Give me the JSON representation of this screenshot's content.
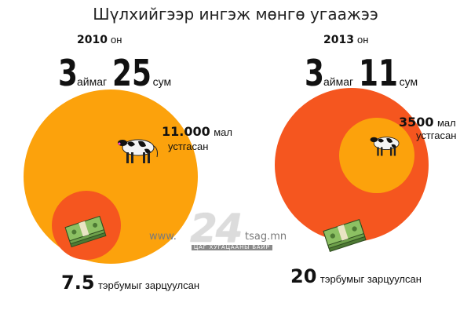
{
  "title": "Шүлхийгээр ингэж мөнгө угаажээ",
  "left": {
    "year": "2010",
    "year_suffix": "он",
    "aimag_count": "3",
    "aimag_label": "аймаг",
    "sum_count": "25",
    "sum_label": "сум",
    "livestock_number": "11.000",
    "livestock_unit": "мал",
    "livestock_text": "устгасан",
    "spend_number": "7.5",
    "spend_text": "тэрбумыг зарцуулсан"
  },
  "right": {
    "year": "2013",
    "year_suffix": "он",
    "aimag_count": "3",
    "aimag_label": "аймаг",
    "sum_count": "11",
    "sum_label": "сум",
    "livestock_number": "3500",
    "livestock_unit": "мал",
    "livestock_text": "устгасан",
    "spend_number": "20",
    "spend_text": "тэрбумыг зарцуулсан"
  },
  "watermark": {
    "left": "www.",
    "logo": "24",
    "right": "tsag.mn",
    "sub": "ЦАГ ХУГАЦААНЫ БАЙР"
  },
  "colors": {
    "orange_light": "#FCA20C",
    "orange_red": "#F5561F",
    "cash_green": "#5B8F3E"
  }
}
